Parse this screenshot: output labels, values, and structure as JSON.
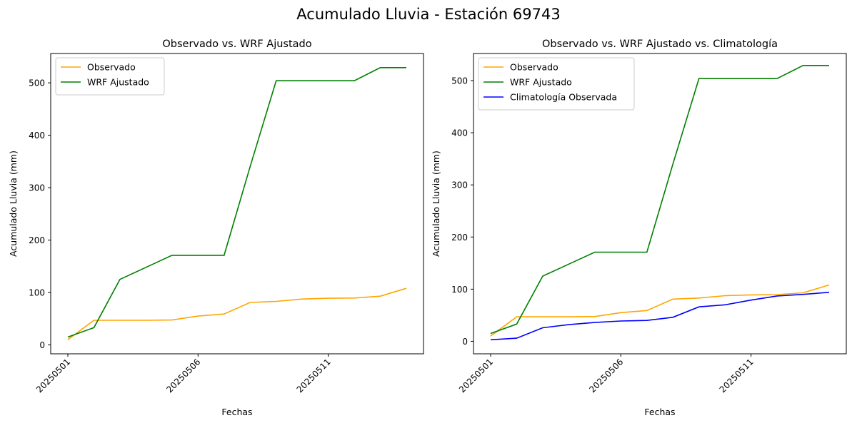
{
  "figure": {
    "title": "Acumulado Lluvia - Estación 69743"
  },
  "chart_data": [
    {
      "type": "line",
      "title": "Observado vs. WRF Ajustado",
      "xlabel": "Fechas",
      "ylabel": "Acumulado Lluvia (mm)",
      "x": [
        "20250501",
        "20250502",
        "20250503",
        "20250504",
        "20250505",
        "20250506",
        "20250507",
        "20250508",
        "20250509",
        "20250510",
        "20250511",
        "20250512",
        "20250513",
        "20250514"
      ],
      "xticks": [
        "20250501",
        "20250506",
        "20250511"
      ],
      "yticks": [
        0,
        100,
        200,
        300,
        400,
        500
      ],
      "ylim": [
        -17,
        556
      ],
      "legend_position": "upper left",
      "grid": false,
      "series": [
        {
          "name": "Observado",
          "color": "#FFA500",
          "values": [
            10,
            47,
            47,
            47,
            47.5,
            55,
            59,
            81,
            83,
            87.5,
            89,
            89.5,
            93,
            108
          ]
        },
        {
          "name": "WRF Ajustado",
          "color": "#008000",
          "values": [
            15,
            33,
            125,
            148,
            171,
            171,
            171,
            340,
            504,
            504,
            504,
            504,
            529,
            529
          ]
        }
      ]
    },
    {
      "type": "line",
      "title": "Observado vs. WRF Ajustado vs. Climatología",
      "xlabel": "Fechas",
      "ylabel": "Acumulado Lluvia (mm)",
      "x": [
        "20250501",
        "20250502",
        "20250503",
        "20250504",
        "20250505",
        "20250506",
        "20250507",
        "20250508",
        "20250509",
        "20250510",
        "20250511",
        "20250512",
        "20250513",
        "20250514"
      ],
      "xticks": [
        "20250501",
        "20250506",
        "20250511"
      ],
      "yticks": [
        0,
        100,
        200,
        300,
        400,
        500
      ],
      "ylim": [
        -24,
        552
      ],
      "legend_position": "upper left",
      "grid": false,
      "series": [
        {
          "name": "Observado",
          "color": "#FFA500",
          "values": [
            10,
            47,
            47,
            47,
            47.5,
            55,
            59,
            81,
            83,
            87.5,
            89,
            89.5,
            93,
            108
          ]
        },
        {
          "name": "WRF Ajustado",
          "color": "#008000",
          "values": [
            15,
            33,
            125,
            148,
            171,
            171,
            171,
            340,
            504,
            504,
            504,
            504,
            529,
            529
          ]
        },
        {
          "name": "Climatología Observada",
          "color": "#0000FF",
          "values": [
            3,
            6,
            26,
            32,
            36,
            39,
            40,
            46,
            66,
            70,
            79,
            87,
            90,
            94
          ]
        }
      ]
    }
  ]
}
